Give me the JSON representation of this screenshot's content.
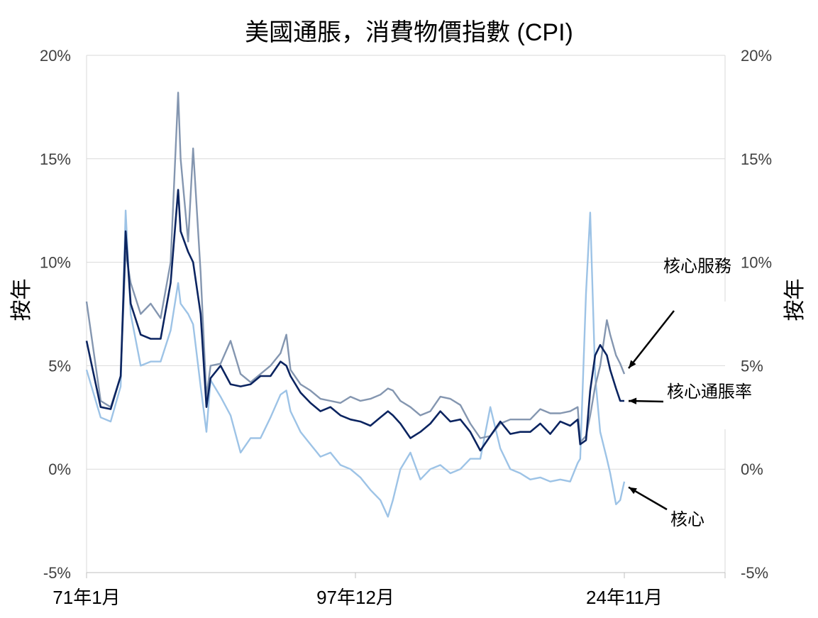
{
  "chart_data": {
    "type": "line",
    "title": "美國通脹，消費物價指數 (CPI)",
    "ylabel_left": "按年",
    "ylabel_right": "按年",
    "ylim": [
      -5,
      20
    ],
    "yticks": [
      -5,
      0,
      5,
      10,
      15,
      20
    ],
    "ytick_labels": [
      "-5%",
      "0%",
      "5%",
      "10%",
      "15%",
      "20%"
    ],
    "x_range": [
      "1971-01",
      "2034-12"
    ],
    "xticks": [
      {
        "date": "1971-01",
        "label": "71年1月"
      },
      {
        "date": "1997-12",
        "label": "97年12月"
      },
      {
        "date": "2024-11",
        "label": "24年11月"
      }
    ],
    "grid": true,
    "series": [
      {
        "name": "核心服務",
        "color": "#8496b0",
        "x": [
          "1971-01",
          "1972-06",
          "1973-06",
          "1974-06",
          "1974-12",
          "1975-06",
          "1976-06",
          "1977-06",
          "1978-06",
          "1979-06",
          "1980-03",
          "1980-06",
          "1981-03",
          "1981-09",
          "1982-06",
          "1983-01",
          "1983-06",
          "1984-06",
          "1985-06",
          "1986-06",
          "1987-06",
          "1988-06",
          "1989-06",
          "1990-06",
          "1991-01",
          "1991-06",
          "1992-06",
          "1993-06",
          "1994-06",
          "1995-06",
          "1996-06",
          "1997-06",
          "1998-06",
          "1999-06",
          "2000-06",
          "2001-03",
          "2001-09",
          "2002-06",
          "2003-06",
          "2004-06",
          "2005-06",
          "2006-06",
          "2007-06",
          "2008-06",
          "2009-06",
          "2010-06",
          "2011-06",
          "2012-06",
          "2013-06",
          "2014-06",
          "2015-06",
          "2016-06",
          "2017-06",
          "2018-06",
          "2019-06",
          "2020-03",
          "2020-06",
          "2021-01",
          "2021-06",
          "2021-12",
          "2022-06",
          "2023-02",
          "2023-06",
          "2024-01",
          "2024-06",
          "2024-11"
        ],
        "values": [
          8.1,
          3.3,
          3.0,
          4.5,
          10.5,
          9.0,
          7.5,
          8.0,
          7.3,
          10.0,
          18.2,
          15.0,
          11.0,
          15.5,
          9.5,
          3.5,
          5.0,
          5.1,
          6.2,
          4.6,
          4.2,
          4.6,
          5.0,
          5.6,
          6.5,
          4.8,
          4.1,
          3.8,
          3.4,
          3.3,
          3.2,
          3.5,
          3.3,
          3.4,
          3.6,
          3.9,
          3.8,
          3.3,
          3.0,
          2.6,
          2.8,
          3.5,
          3.4,
          3.1,
          2.2,
          1.5,
          1.6,
          2.2,
          2.4,
          2.4,
          2.4,
          2.9,
          2.7,
          2.7,
          2.8,
          3.0,
          1.3,
          1.6,
          2.6,
          4.0,
          5.0,
          7.2,
          6.5,
          5.5,
          5.1,
          4.6
        ]
      },
      {
        "name": "核心通脹率",
        "color": "#0b2460",
        "x": [
          "1971-01",
          "1972-06",
          "1973-06",
          "1974-06",
          "1974-12",
          "1975-06",
          "1976-06",
          "1977-06",
          "1978-06",
          "1979-06",
          "1980-03",
          "1980-06",
          "1981-03",
          "1981-09",
          "1982-06",
          "1983-01",
          "1983-06",
          "1984-06",
          "1985-06",
          "1986-06",
          "1987-06",
          "1988-06",
          "1989-06",
          "1990-06",
          "1991-01",
          "1991-06",
          "1992-06",
          "1993-06",
          "1994-06",
          "1995-06",
          "1996-06",
          "1997-06",
          "1998-06",
          "1999-06",
          "2000-06",
          "2001-03",
          "2001-09",
          "2002-06",
          "2003-06",
          "2004-06",
          "2005-06",
          "2006-06",
          "2007-06",
          "2008-06",
          "2009-06",
          "2010-06",
          "2011-06",
          "2012-06",
          "2013-06",
          "2014-06",
          "2015-06",
          "2016-06",
          "2017-06",
          "2018-06",
          "2019-06",
          "2020-03",
          "2020-06",
          "2021-01",
          "2021-06",
          "2021-12",
          "2022-06",
          "2023-02",
          "2023-06",
          "2024-01",
          "2024-06",
          "2024-11"
        ],
        "values": [
          6.2,
          3.0,
          2.9,
          4.5,
          11.5,
          8.0,
          6.5,
          6.3,
          6.3,
          9.0,
          13.5,
          11.5,
          10.5,
          10.0,
          7.5,
          3.0,
          4.4,
          5.0,
          4.1,
          4.0,
          4.1,
          4.5,
          4.5,
          5.2,
          5.0,
          4.5,
          3.7,
          3.2,
          2.8,
          3.0,
          2.6,
          2.4,
          2.3,
          2.1,
          2.5,
          2.8,
          2.6,
          2.2,
          1.5,
          1.8,
          2.2,
          2.8,
          2.3,
          2.4,
          1.8,
          0.9,
          1.6,
          2.3,
          1.7,
          1.8,
          1.8,
          2.2,
          1.7,
          2.3,
          2.1,
          2.4,
          1.2,
          1.4,
          3.8,
          5.5,
          6.0,
          5.5,
          4.8,
          3.9,
          3.3,
          3.3
        ]
      },
      {
        "name": "核心",
        "color": "#9dc3e6",
        "x": [
          "1971-01",
          "1972-06",
          "1973-06",
          "1974-06",
          "1974-12",
          "1975-06",
          "1976-06",
          "1977-06",
          "1978-06",
          "1979-06",
          "1980-03",
          "1980-06",
          "1981-03",
          "1981-09",
          "1982-06",
          "1983-01",
          "1983-06",
          "1984-06",
          "1985-06",
          "1986-06",
          "1987-06",
          "1988-06",
          "1989-06",
          "1990-06",
          "1991-01",
          "1991-06",
          "1992-06",
          "1993-06",
          "1994-06",
          "1995-06",
          "1996-06",
          "1997-06",
          "1998-06",
          "1999-06",
          "2000-06",
          "2001-03",
          "2001-09",
          "2002-06",
          "2003-06",
          "2004-06",
          "2005-06",
          "2006-06",
          "2007-06",
          "2008-06",
          "2009-06",
          "2010-06",
          "2011-06",
          "2012-06",
          "2013-06",
          "2014-06",
          "2015-06",
          "2016-06",
          "2017-06",
          "2018-06",
          "2019-06",
          "2020-03",
          "2020-06",
          "2021-01",
          "2021-06",
          "2021-12",
          "2022-06",
          "2023-02",
          "2023-06",
          "2024-01",
          "2024-06",
          "2024-11"
        ],
        "values": [
          4.8,
          2.5,
          2.3,
          4.0,
          12.5,
          7.5,
          5.0,
          5.2,
          5.2,
          6.7,
          9.0,
          8.0,
          7.5,
          7.0,
          4.0,
          1.8,
          4.3,
          3.5,
          2.6,
          0.8,
          1.5,
          1.5,
          2.5,
          3.6,
          3.8,
          2.8,
          1.8,
          1.2,
          0.6,
          0.8,
          0.2,
          0.0,
          -0.4,
          -1.0,
          -1.5,
          -2.3,
          -1.5,
          0.0,
          0.8,
          -0.5,
          0.0,
          0.2,
          -0.2,
          0.0,
          0.5,
          0.5,
          3.0,
          1.0,
          0.0,
          -0.2,
          -0.5,
          -0.4,
          -0.6,
          -0.5,
          -0.6,
          0.3,
          0.5,
          8.5,
          12.4,
          4.5,
          1.8,
          0.5,
          -0.2,
          -1.7,
          -1.5,
          -0.6
        ]
      }
    ],
    "annotations": [
      {
        "text": "核心服務",
        "series": "核心服務"
      },
      {
        "text": "核心通脹率",
        "series": "核心通脹率"
      },
      {
        "text": "核心",
        "series": "核心"
      }
    ]
  }
}
